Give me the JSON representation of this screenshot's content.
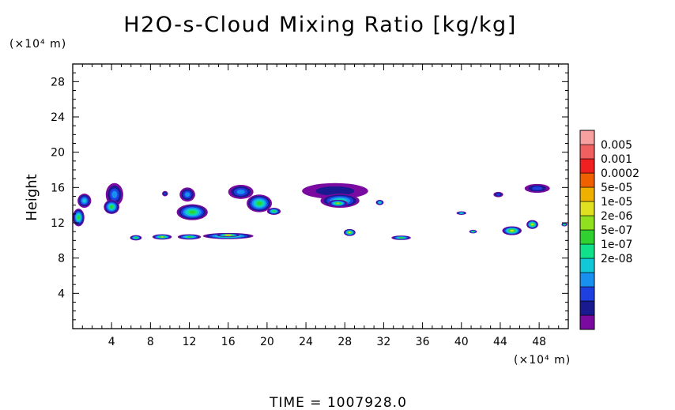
{
  "chart_data": {
    "type": "heatmap",
    "title": "H2O-s-Cloud Mixing Ratio [kg/kg]",
    "ylabel": "Height",
    "xunit": "(×10⁴ m)",
    "yunit": "(×10⁴ m)",
    "xlim": [
      0,
      51
    ],
    "ylim": [
      0,
      30
    ],
    "xticks": [
      4,
      8,
      12,
      16,
      20,
      24,
      28,
      32,
      36,
      40,
      44,
      48
    ],
    "yticks": [
      4,
      8,
      12,
      16,
      20,
      24,
      28
    ],
    "footer": "TIME  =  1007928.0",
    "colorbar": {
      "labels": [
        "0.005",
        "0.001",
        "0.0002",
        "5e-05",
        "1e-05",
        "2e-06",
        "5e-07",
        "1e-07",
        "2e-08"
      ],
      "colors": [
        "#7a0aa0",
        "#1a1a90",
        "#1f40e0",
        "#1890f0",
        "#10c8d8",
        "#10e08a",
        "#30d030",
        "#90e020",
        "#e0e020",
        "#f0b000",
        "#f06000",
        "#f02020",
        "#f06060",
        "#f8a0a0"
      ]
    },
    "regions": [
      {
        "x": 1.2,
        "y": 14.5,
        "rx": 0.7,
        "ry": 0.8,
        "level": 4
      },
      {
        "x": 0.6,
        "y": 12.6,
        "rx": 0.6,
        "ry": 1.0,
        "level": 6
      },
      {
        "x": 4.3,
        "y": 15.2,
        "rx": 0.9,
        "ry": 1.3,
        "level": 3
      },
      {
        "x": 4.0,
        "y": 13.8,
        "rx": 0.8,
        "ry": 0.8,
        "level": 6
      },
      {
        "x": 9.5,
        "y": 15.3,
        "rx": 0.3,
        "ry": 0.3,
        "level": 2
      },
      {
        "x": 11.8,
        "y": 15.2,
        "rx": 0.8,
        "ry": 0.8,
        "level": 3
      },
      {
        "x": 12.3,
        "y": 13.2,
        "rx": 1.6,
        "ry": 0.9,
        "level": 6
      },
      {
        "x": 17.3,
        "y": 15.5,
        "rx": 1.3,
        "ry": 0.8,
        "level": 3
      },
      {
        "x": 19.2,
        "y": 14.2,
        "rx": 1.3,
        "ry": 1.0,
        "level": 6
      },
      {
        "x": 20.7,
        "y": 13.3,
        "rx": 0.7,
        "ry": 0.4,
        "level": 6
      },
      {
        "x": 27.0,
        "y": 15.6,
        "rx": 3.4,
        "ry": 0.9,
        "level": 1
      },
      {
        "x": 27.5,
        "y": 14.5,
        "rx": 2.0,
        "ry": 0.8,
        "level": 5
      },
      {
        "x": 27.3,
        "y": 14.2,
        "rx": 1.0,
        "ry": 0.4,
        "level": 7
      },
      {
        "x": 31.6,
        "y": 14.3,
        "rx": 0.4,
        "ry": 0.3,
        "level": 5
      },
      {
        "x": 6.5,
        "y": 10.3,
        "rx": 0.6,
        "ry": 0.3,
        "level": 6
      },
      {
        "x": 9.2,
        "y": 10.4,
        "rx": 1.0,
        "ry": 0.3,
        "level": 7
      },
      {
        "x": 12.0,
        "y": 10.4,
        "rx": 1.2,
        "ry": 0.3,
        "level": 6
      },
      {
        "x": 16.0,
        "y": 10.5,
        "rx": 2.6,
        "ry": 0.35,
        "level": 7
      },
      {
        "x": 16.0,
        "y": 10.6,
        "rx": 1.2,
        "ry": 0.2,
        "level": 9
      },
      {
        "x": 28.5,
        "y": 10.9,
        "rx": 0.6,
        "ry": 0.4,
        "level": 8
      },
      {
        "x": 33.8,
        "y": 10.3,
        "rx": 1.0,
        "ry": 0.25,
        "level": 6
      },
      {
        "x": 40.0,
        "y": 13.1,
        "rx": 0.5,
        "ry": 0.2,
        "level": 5
      },
      {
        "x": 41.2,
        "y": 11.0,
        "rx": 0.4,
        "ry": 0.2,
        "level": 6
      },
      {
        "x": 43.8,
        "y": 15.2,
        "rx": 0.5,
        "ry": 0.3,
        "level": 2
      },
      {
        "x": 45.2,
        "y": 11.1,
        "rx": 1.0,
        "ry": 0.5,
        "level": 8
      },
      {
        "x": 47.8,
        "y": 15.9,
        "rx": 1.3,
        "ry": 0.5,
        "level": 2
      },
      {
        "x": 47.3,
        "y": 11.8,
        "rx": 0.6,
        "ry": 0.5,
        "level": 8
      },
      {
        "x": 50.6,
        "y": 11.8,
        "rx": 0.3,
        "ry": 0.2,
        "level": 6
      }
    ]
  }
}
